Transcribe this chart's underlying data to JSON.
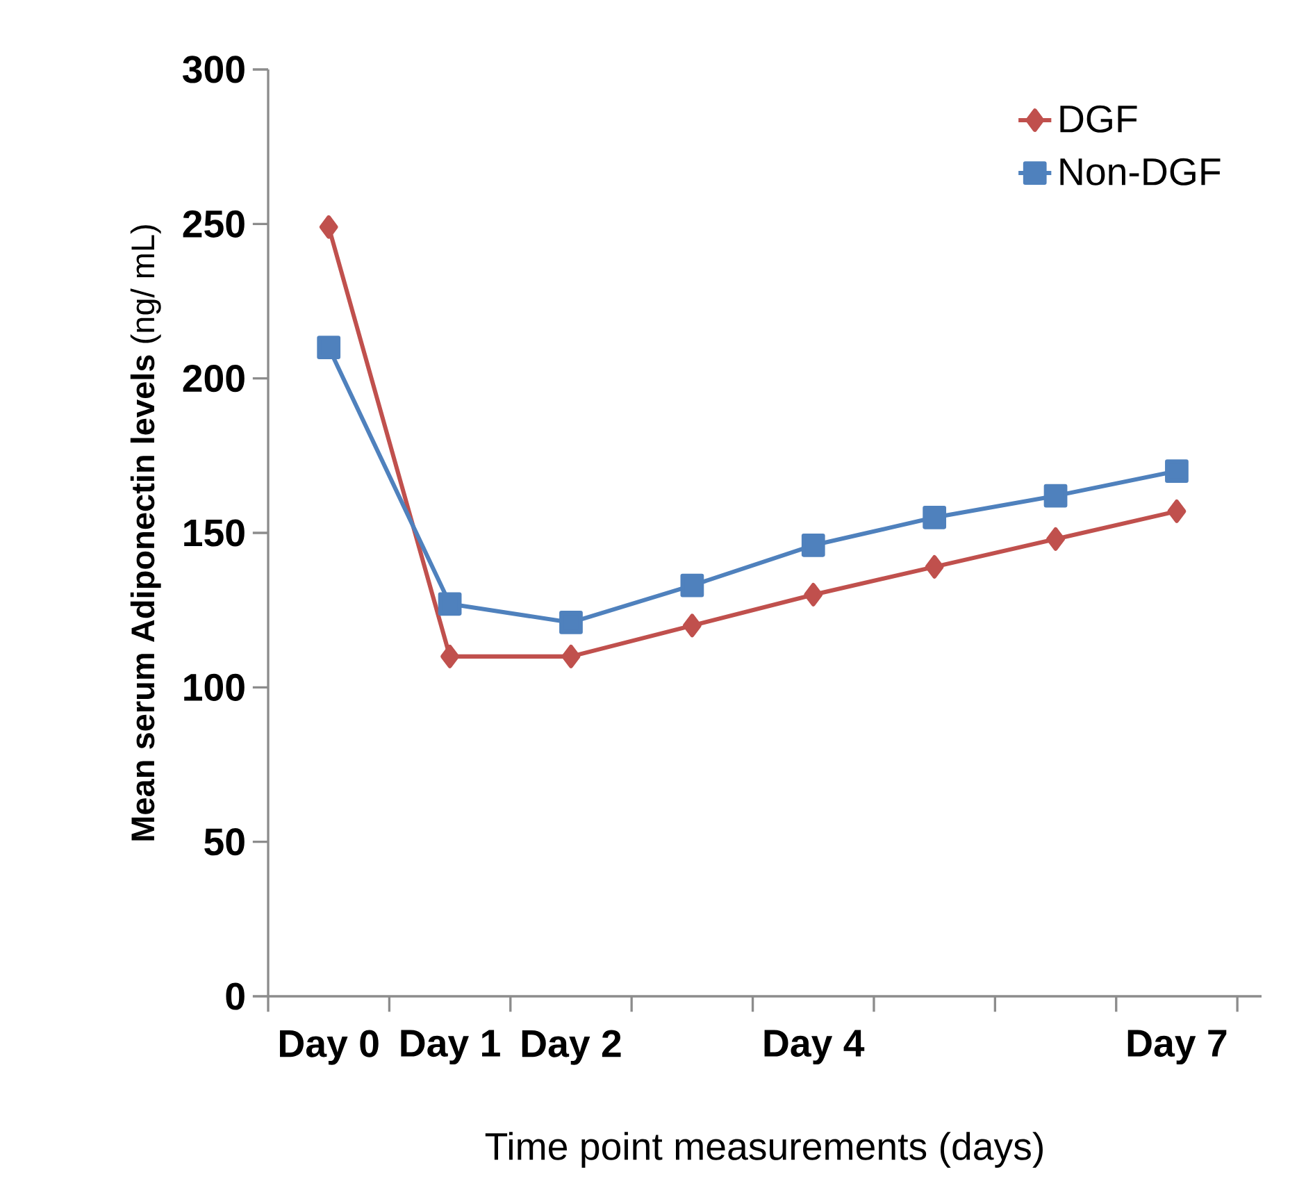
{
  "chart_data": {
    "type": "line",
    "xlabel": "Time point measurements (days)",
    "ylabel": "**Mean serum Adiponectin levels** (ng/ mL)",
    "categories": [
      "Day 0",
      "Day 1",
      "Day 2",
      null,
      "Day 4",
      null,
      null,
      "Day 7"
    ],
    "series": [
      {
        "name": "DGF",
        "color": "#c0504d",
        "marker": "diamond",
        "values": [
          249,
          110,
          110,
          120,
          130,
          139,
          148,
          157
        ]
      },
      {
        "name": "Non-DGF",
        "color": "#4f81bd",
        "marker": "square",
        "values": [
          210,
          127,
          121,
          133,
          146,
          155,
          162,
          170
        ]
      }
    ],
    "ylim": [
      0,
      300
    ],
    "yticks": [
      0,
      50,
      100,
      150,
      200,
      250,
      300
    ],
    "legend": "top right",
    "grid": false
  }
}
